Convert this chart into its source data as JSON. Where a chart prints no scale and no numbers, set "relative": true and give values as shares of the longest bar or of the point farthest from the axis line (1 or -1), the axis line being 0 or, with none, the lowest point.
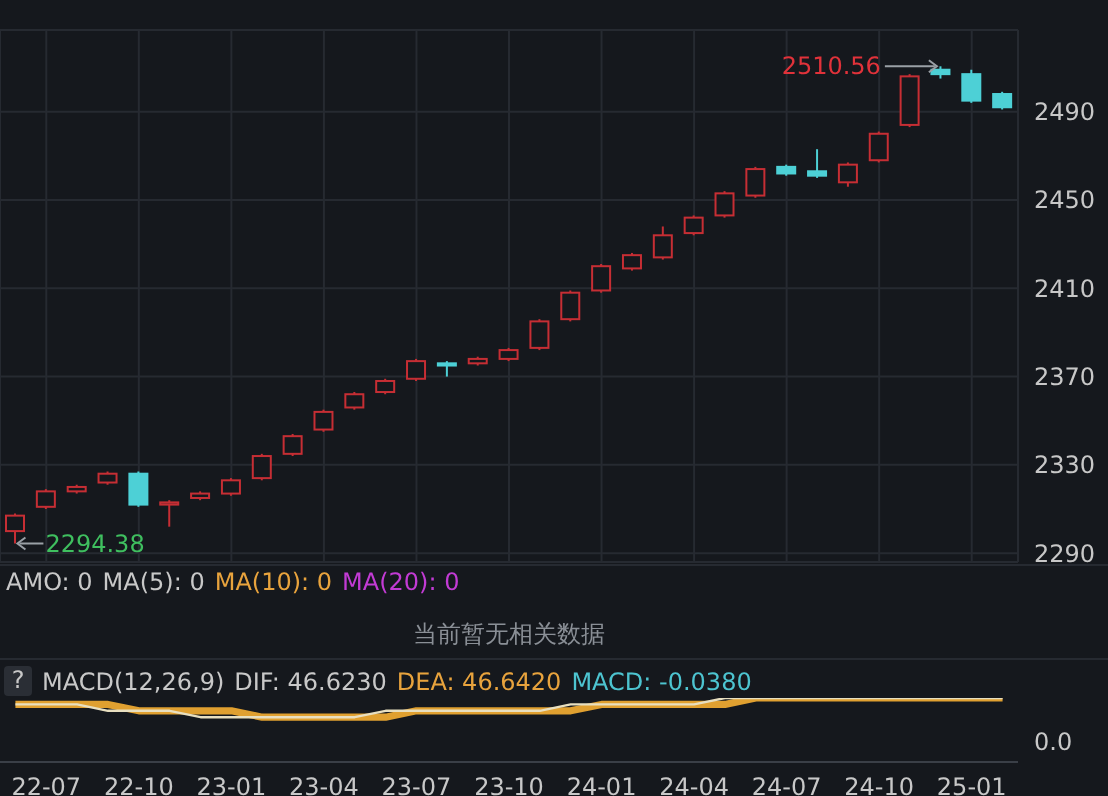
{
  "chart_data": [
    {
      "type": "candlestick",
      "categories": [
        null,
        null,
        null,
        null,
        null,
        null,
        null,
        null,
        null,
        null,
        null,
        null,
        null,
        null,
        null,
        null,
        null,
        null,
        null,
        null,
        null,
        null,
        null,
        null,
        null,
        null,
        null,
        null,
        null,
        null,
        null,
        null,
        null
      ],
      "ohlc": [
        [
          2300,
          2308,
          2294.38,
          2307
        ],
        [
          2311,
          2319,
          2310,
          2318
        ],
        [
          2318,
          2321,
          2317,
          2320
        ],
        [
          2322,
          2327,
          2321,
          2326
        ],
        [
          2326,
          2327,
          2311,
          2312
        ],
        [
          2312,
          2314,
          2302,
          2313
        ],
        [
          2315,
          2318,
          2314,
          2317
        ],
        [
          2317,
          2324,
          2316,
          2323
        ],
        [
          2324,
          2335,
          2323,
          2334
        ],
        [
          2335,
          2344,
          2334,
          2343
        ],
        [
          2346,
          2355,
          2345,
          2354
        ],
        [
          2356,
          2363,
          2355,
          2362
        ],
        [
          2363,
          2369,
          2362,
          2368
        ],
        [
          2369,
          2378,
          2368,
          2377
        ],
        [
          2376,
          2377,
          2370,
          2375
        ],
        [
          2376,
          2379,
          2375,
          2378
        ],
        [
          2378,
          2383,
          2377,
          2382
        ],
        [
          2383,
          2396,
          2382,
          2395
        ],
        [
          2396,
          2409,
          2395,
          2408
        ],
        [
          2409,
          2421,
          2408,
          2420
        ],
        [
          2419,
          2426,
          2418,
          2425
        ],
        [
          2424,
          2438,
          2423,
          2434
        ],
        [
          2435,
          2443,
          2434,
          2442
        ],
        [
          2443,
          2454,
          2442,
          2453
        ],
        [
          2452,
          2465,
          2451,
          2464
        ],
        [
          2465,
          2466,
          2461,
          2462
        ],
        [
          2463,
          2473,
          2460,
          2461
        ],
        [
          2458,
          2467,
          2456,
          2466
        ],
        [
          2468,
          2481,
          2467,
          2480
        ],
        [
          2484,
          2507,
          2483,
          2506
        ],
        [
          2509,
          2510.56,
          2505,
          2507
        ],
        [
          2507,
          2509,
          2494,
          2495
        ],
        [
          2498,
          2499,
          2491,
          2492
        ]
      ],
      "colors": [
        "#c62e34",
        "#c62e34",
        "#c62e34",
        "#c62e34",
        "#4dd0d6",
        "#c62e34",
        "#c62e34",
        "#c62e34",
        "#c62e34",
        "#c62e34",
        "#c62e34",
        "#c62e34",
        "#c62e34",
        "#c62e34",
        "#4dd0d6",
        "#c62e34",
        "#c62e34",
        "#c62e34",
        "#c62e34",
        "#c62e34",
        "#c62e34",
        "#c62e34",
        "#c62e34",
        "#c62e34",
        "#c62e34",
        "#4dd0d6",
        "#4dd0d6",
        "#c62e34",
        "#c62e34",
        "#c62e34",
        "#4dd0d6",
        "#4dd0d6",
        "#4dd0d6"
      ],
      "ylim": [
        2286,
        2527
      ],
      "yticks": [
        2290,
        2330,
        2370,
        2410,
        2450,
        2490
      ],
      "grid": true,
      "annotations": [
        "2510.56",
        "2294.38",
        "AMO: 0",
        "MA(5): 0",
        "MA(10): 0",
        "MA(20): 0",
        "当前暂无相关数据"
      ]
    },
    {
      "type": "line",
      "relative": true,
      "categories": [
        null,
        "22-07",
        null,
        null,
        "22-10",
        null,
        null,
        "23-01",
        null,
        null,
        "23-04",
        null,
        null,
        "23-07",
        null,
        null,
        "23-10",
        null,
        null,
        "24-01",
        null,
        null,
        "24-04",
        null,
        null,
        "24-07",
        null,
        null,
        "24-10",
        null,
        null,
        "25-01",
        null
      ],
      "series": [
        {
          "color": "#e8dfc0",
          "values": [
            0.9,
            0.9,
            0.9,
            0.8,
            0.8,
            0.8,
            0.7,
            0.7,
            0.7,
            0.7,
            0.7,
            0.7,
            0.8,
            0.8,
            0.8,
            0.8,
            0.8,
            0.8,
            0.9,
            0.9,
            0.9,
            0.9,
            0.9,
            1,
            1,
            1,
            1,
            1,
            1,
            1,
            1,
            1,
            1
          ]
        },
        {
          "color": "#e0a030",
          "values": [
            0.9,
            0.9,
            0.9,
            0.9,
            0.8,
            0.8,
            0.8,
            0.8,
            0.7,
            0.7,
            0.7,
            0.7,
            0.7,
            0.8,
            0.8,
            0.8,
            0.8,
            0.8,
            0.8,
            0.9,
            0.9,
            0.9,
            0.9,
            0.9,
            1,
            1,
            1,
            1,
            1,
            1,
            1,
            1,
            1
          ]
        }
      ],
      "marker": "none",
      "tick_labels": "x",
      "annotations": [
        "?",
        "MACD(12,26,9)",
        "DIF: 46.6230",
        "DEA: 46.6420",
        "MACD: -0.0380",
        "0.0"
      ]
    }
  ]
}
